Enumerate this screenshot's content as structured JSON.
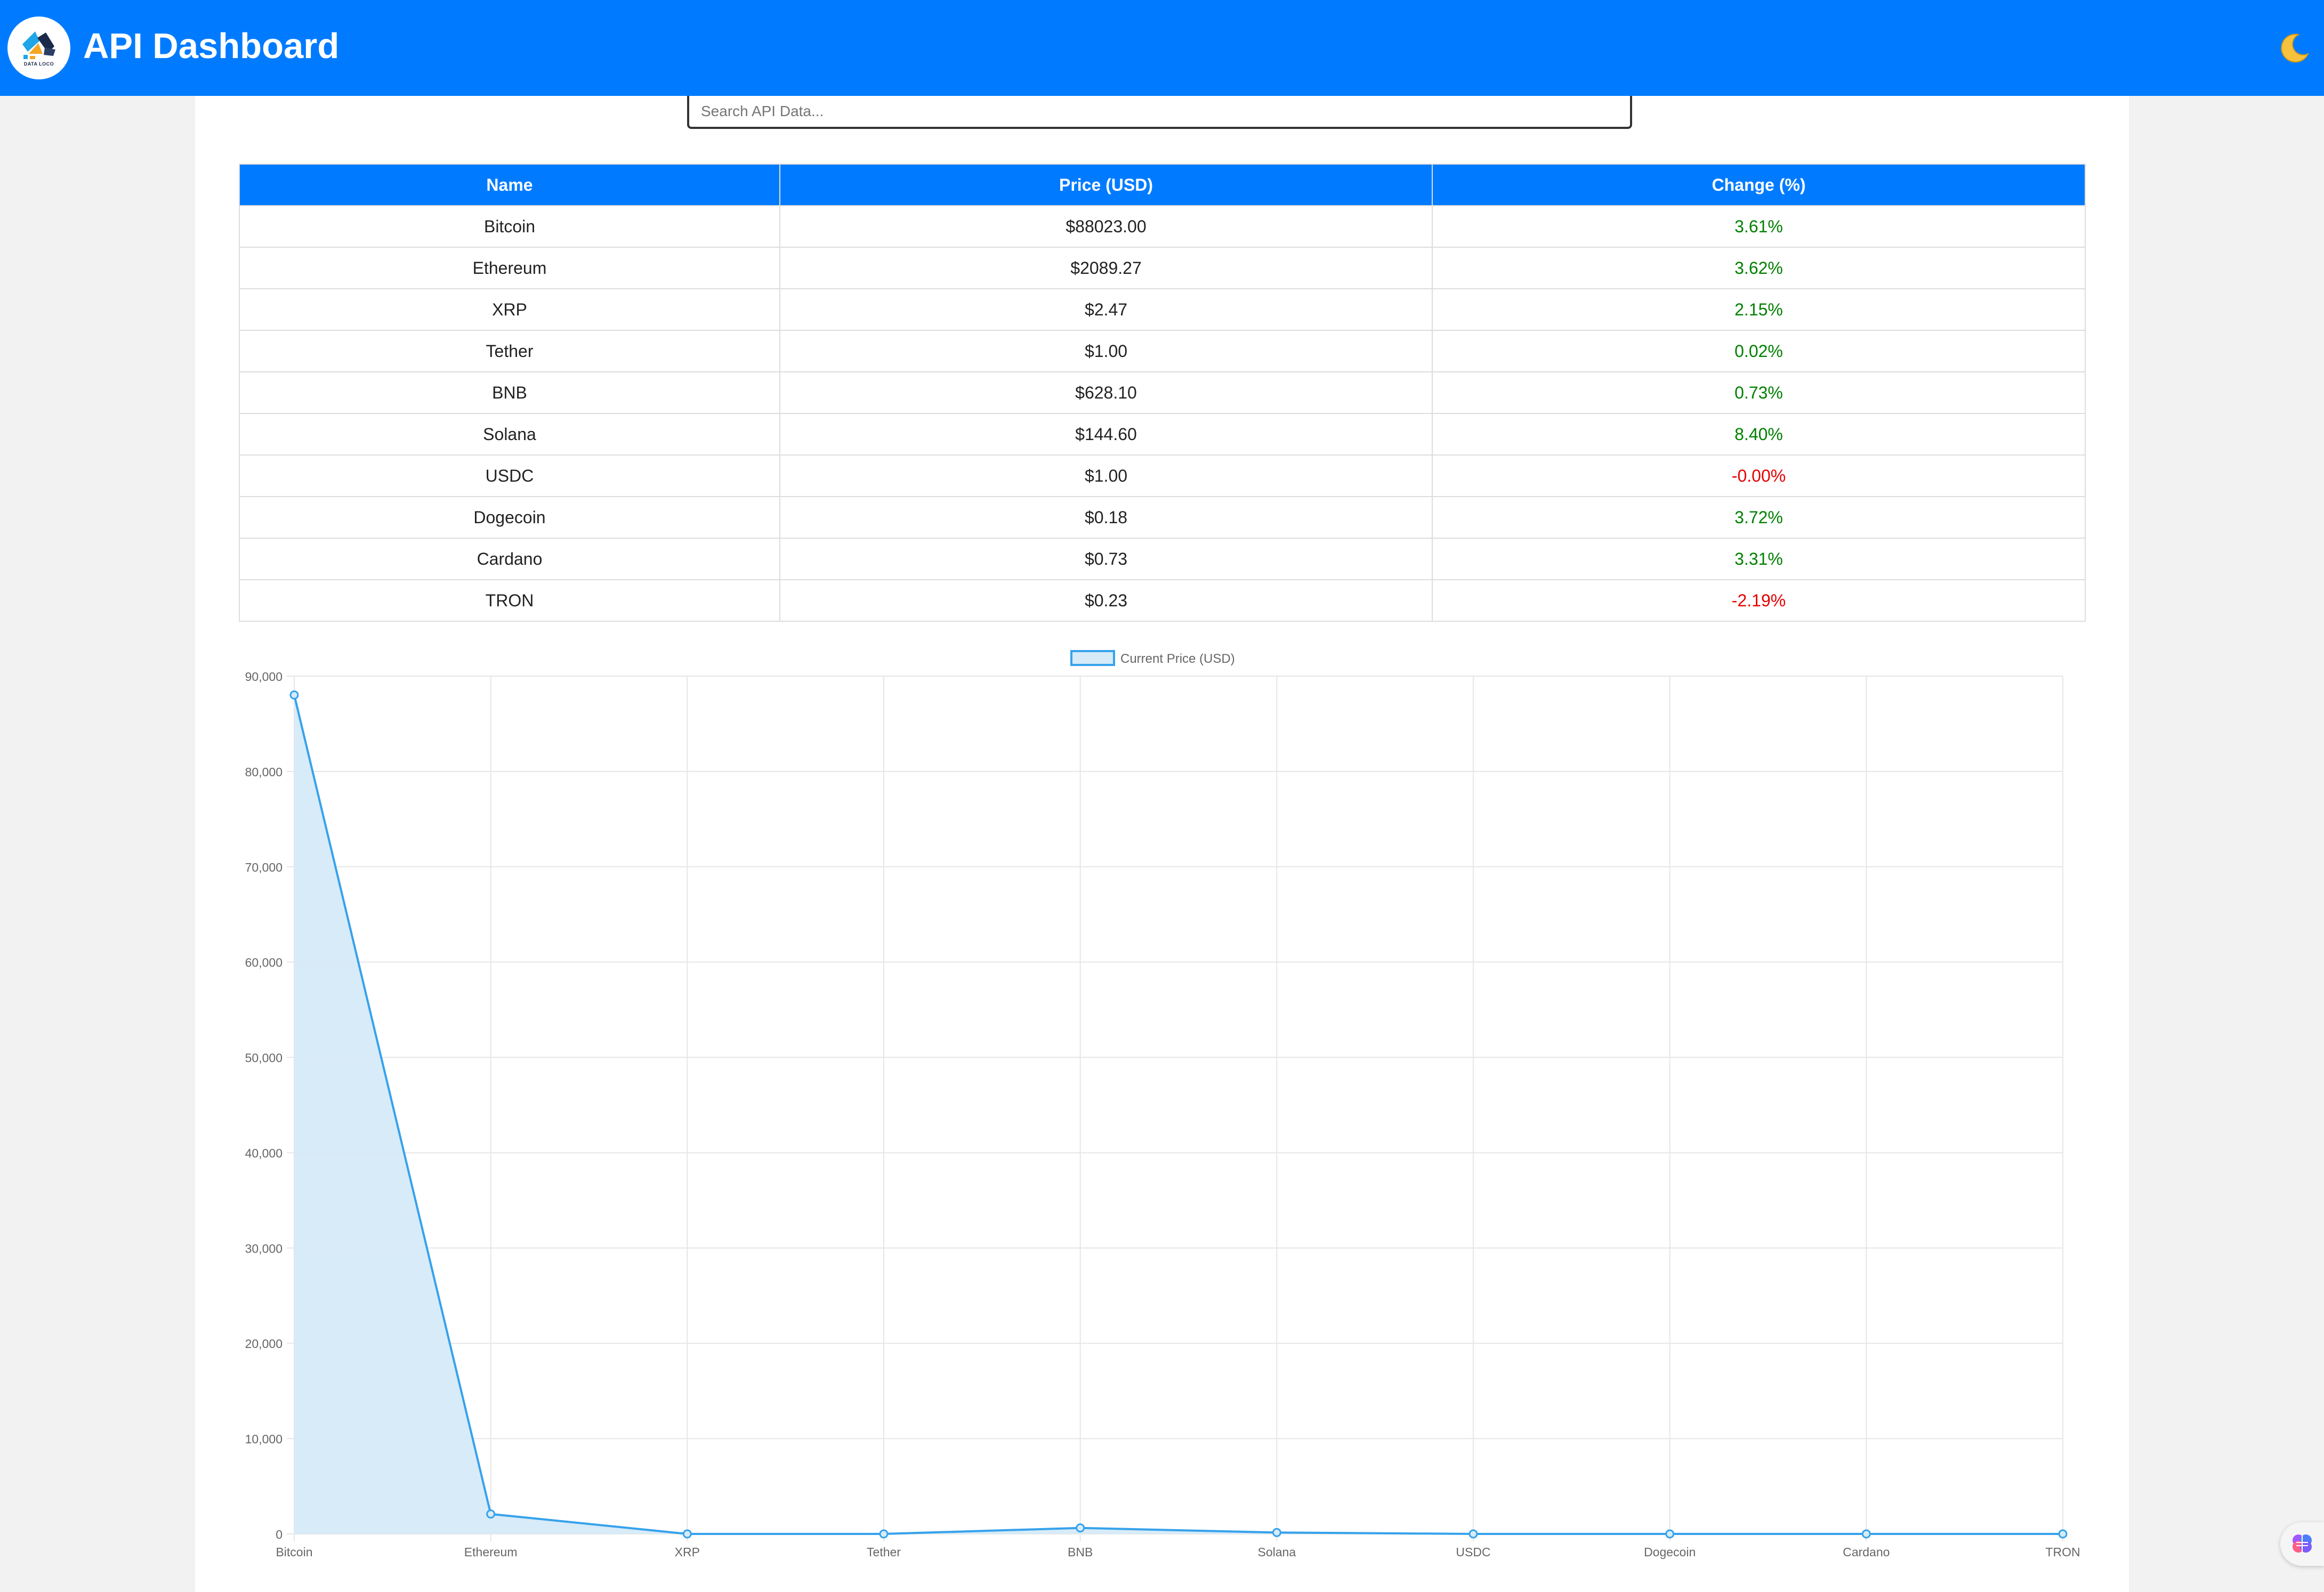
{
  "header": {
    "logo_text": "DATA LOCO",
    "title": "API Dashboard",
    "theme_toggle_icon": "moon-icon"
  },
  "search": {
    "placeholder": "Search API Data...",
    "value": ""
  },
  "table": {
    "columns": [
      "Name",
      "Price (USD)",
      "Change (%)"
    ],
    "rows": [
      {
        "name": "Bitcoin",
        "price": "$88023.00",
        "change": "3.61%",
        "trend": "up"
      },
      {
        "name": "Ethereum",
        "price": "$2089.27",
        "change": "3.62%",
        "trend": "up"
      },
      {
        "name": "XRP",
        "price": "$2.47",
        "change": "2.15%",
        "trend": "up"
      },
      {
        "name": "Tether",
        "price": "$1.00",
        "change": "0.02%",
        "trend": "up"
      },
      {
        "name": "BNB",
        "price": "$628.10",
        "change": "0.73%",
        "trend": "up"
      },
      {
        "name": "Solana",
        "price": "$144.60",
        "change": "8.40%",
        "trend": "up"
      },
      {
        "name": "USDC",
        "price": "$1.00",
        "change": "-0.00%",
        "trend": "down"
      },
      {
        "name": "Dogecoin",
        "price": "$0.18",
        "change": "3.72%",
        "trend": "up"
      },
      {
        "name": "Cardano",
        "price": "$0.73",
        "change": "3.31%",
        "trend": "up"
      },
      {
        "name": "TRON",
        "price": "$0.23",
        "change": "-2.19%",
        "trend": "down"
      }
    ]
  },
  "colors": {
    "primary": "#007bff",
    "positive": "#008000",
    "negative": "#e60000",
    "series_line": "#36a2eb",
    "series_fill": "#d6eaf8"
  },
  "assistant_fab_icon": "brain-icon",
  "chart_data": {
    "type": "area",
    "categories": [
      "Bitcoin",
      "Ethereum",
      "XRP",
      "Tether",
      "BNB",
      "Solana",
      "USDC",
      "Dogecoin",
      "Cardano",
      "TRON"
    ],
    "series": [
      {
        "name": "Current Price (USD)",
        "values": [
          88023.0,
          2089.27,
          2.47,
          1.0,
          628.1,
          144.6,
          1.0,
          0.18,
          0.73,
          0.23
        ]
      }
    ],
    "yticks": [
      "0",
      "10,000",
      "20,000",
      "30,000",
      "40,000",
      "50,000",
      "60,000",
      "70,000",
      "80,000",
      "90,000"
    ],
    "ylim": [
      0,
      90000
    ],
    "grid": true,
    "legend": "top-center"
  }
}
